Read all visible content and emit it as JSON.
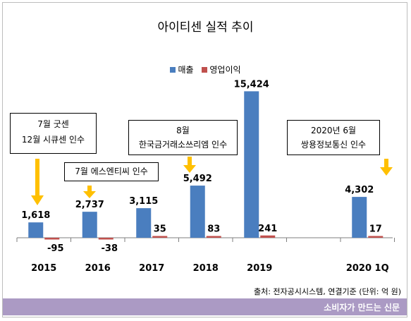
{
  "chart_data": {
    "type": "bar",
    "title": "아이티센 실적 추이",
    "categories": [
      "2015",
      "2016",
      "2017",
      "2018",
      "2019",
      "2020 1Q"
    ],
    "series": [
      {
        "name": "매출",
        "color": "#4a7ebf",
        "values": [
          1618,
          2737,
          3115,
          5492,
          15424,
          4302
        ],
        "labels": [
          "1,618",
          "2,737",
          "3,115",
          "5,492",
          "15,424",
          "4,302"
        ]
      },
      {
        "name": "영업이익",
        "color": "#c0504d",
        "values": [
          -95,
          -38,
          35,
          83,
          241,
          17
        ],
        "labels": [
          "-95",
          "-38",
          "35",
          "83",
          "241",
          "17"
        ]
      }
    ],
    "legend_position": "top",
    "annotations": [
      {
        "lines": [
          "7월 굿센",
          "12월 시큐센 인수"
        ],
        "category": "2015"
      },
      {
        "lines": [
          "7월 에스엔티씨 인수"
        ],
        "category": "2016"
      },
      {
        "lines": [
          "8월",
          "한국금거래소쓰리엠 인수"
        ],
        "category": "2018"
      },
      {
        "lines": [
          "2020년 6월",
          "쌍용정보통신 인수"
        ],
        "category": "2020 1Q"
      }
    ]
  },
  "source": "출처: 전자공시시스템, 연결기준 (단위: 억 원)",
  "footer": "소비자가 만드는 신문",
  "colors": {
    "accent_arrow": "#ffc000",
    "footer_bg": "#ab9ac4"
  }
}
